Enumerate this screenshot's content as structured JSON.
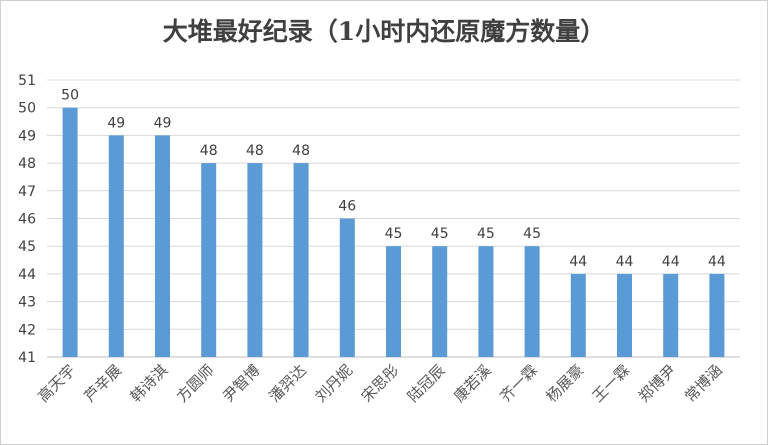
{
  "chart_data": {
    "type": "bar",
    "title": "大堆最好纪录（1小时内还原魔方数量）",
    "categories": [
      "高天宇",
      "芦辛展",
      "韩诗淇",
      "方圆师",
      "尹智博",
      "潘羿达",
      "刘丹妮",
      "宋思彤",
      "陆冠辰",
      "康若溪",
      "齐一霖",
      "杨展豪",
      "王一霖",
      "郑博尹",
      "常博涵"
    ],
    "values": [
      50,
      49,
      49,
      48,
      48,
      48,
      46,
      45,
      45,
      45,
      45,
      44,
      44,
      44,
      44
    ],
    "ylim": [
      41,
      51
    ],
    "yticks": [
      41,
      42,
      43,
      44,
      45,
      46,
      47,
      48,
      49,
      50,
      51
    ],
    "grid": true,
    "legend": "none",
    "bar_color": "#5b9bd5"
  }
}
